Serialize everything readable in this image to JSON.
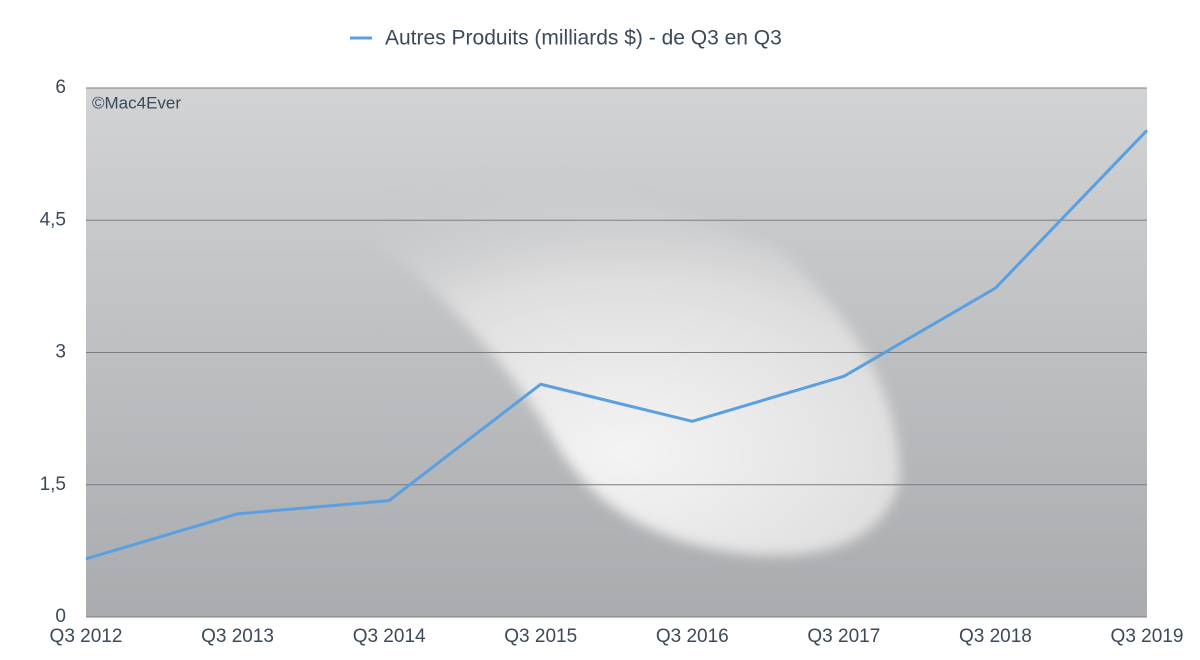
{
  "chart_data": {
    "type": "line",
    "watermark": "©Mac4Ever",
    "categories": [
      "Q3 2012",
      "Q3 2013",
      "Q3 2014",
      "Q3 2015",
      "Q3 2016",
      "Q3 2017",
      "Q3 2018",
      "Q3 2019"
    ],
    "series": [
      {
        "name": "Autres Produits (milliards $) - de Q3 en Q3",
        "color": "#5aa0e0",
        "values": [
          0.66,
          1.17,
          1.32,
          2.64,
          2.22,
          2.73,
          3.73,
          5.52
        ]
      }
    ],
    "ylim": [
      0,
      6
    ],
    "yticks": [
      0,
      {
        "value": 1.5,
        "label": "1,5"
      },
      3,
      {
        "value": 4.5,
        "label": "4,5"
      },
      6
    ],
    "grid": true,
    "legend": "top"
  }
}
